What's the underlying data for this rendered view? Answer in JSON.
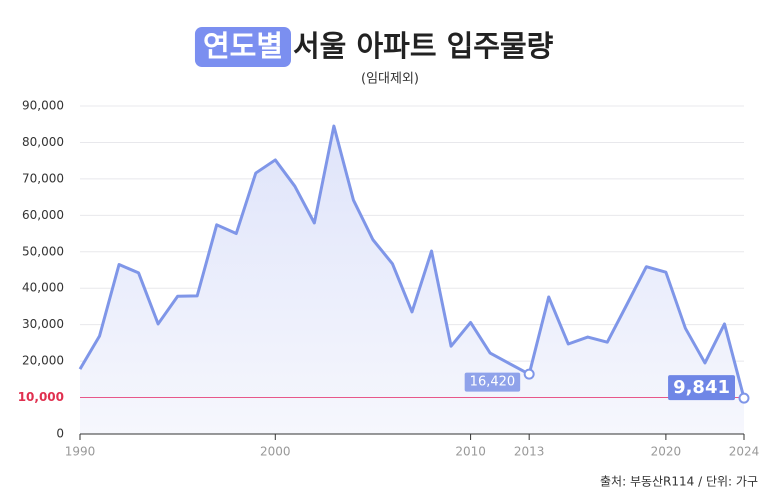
{
  "chart_data": {
    "type": "line",
    "title_highlight": "연도별",
    "title": "서울 아파트 입주물량",
    "subtitle": "(임대제외)",
    "source": "출처: 부동산R114 / 단위: 가구",
    "x": [
      1990,
      1991,
      1992,
      1993,
      1994,
      1995,
      1996,
      1997,
      1998,
      1999,
      2000,
      2001,
      2002,
      2003,
      2004,
      2005,
      2006,
      2007,
      2008,
      2009,
      2010,
      2011,
      2012,
      2013,
      2014,
      2015,
      2016,
      2017,
      2018,
      2019,
      2020,
      2021,
      2022,
      2023,
      2024
    ],
    "values": [
      17800,
      26900,
      46500,
      44200,
      30200,
      37800,
      37900,
      57400,
      55000,
      71600,
      75200,
      68000,
      57900,
      84500,
      64200,
      53300,
      46700,
      33500,
      50200,
      24100,
      30600,
      22200,
      19300,
      16420,
      37600,
      24700,
      26600,
      25200,
      35500,
      45900,
      44400,
      29000,
      19500,
      30200,
      9841
    ],
    "value_labels": [
      null,
      null,
      null,
      null,
      null,
      null,
      null,
      null,
      null,
      null,
      null,
      null,
      null,
      null,
      null,
      null,
      null,
      null,
      null,
      null,
      null,
      null,
      null,
      "16,420",
      null,
      null,
      null,
      null,
      null,
      null,
      null,
      null,
      null,
      null,
      "9,841"
    ],
    "color": "#7f96e8",
    "xlim": [
      1990,
      2024
    ],
    "xticks": [
      1990,
      2000,
      2010,
      2013,
      2020,
      2024
    ],
    "ylim": [
      0,
      90000
    ],
    "yticks": [
      0,
      {
        "value": 10000,
        "label": "10,000"
      },
      {
        "value": 20000,
        "label": "20,000"
      },
      {
        "value": 30000,
        "label": "30,000"
      },
      {
        "value": 40000,
        "label": "40,000"
      },
      {
        "value": 50000,
        "label": "50,000"
      },
      {
        "value": 60000,
        "label": "60,000"
      },
      {
        "value": 70000,
        "label": "70,000"
      },
      {
        "value": 80000,
        "label": "80,000"
      },
      {
        "value": 90000,
        "label": "90,000"
      }
    ],
    "grid": true,
    "reference_line": {
      "value": 10000,
      "color": "#e8578a"
    }
  }
}
